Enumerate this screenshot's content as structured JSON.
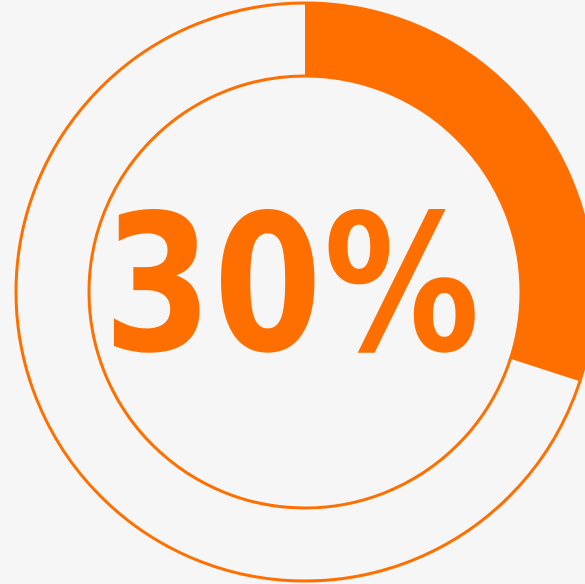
{
  "progress": {
    "value": 30,
    "percent_text": "30%",
    "color": "#ff6f00",
    "track_color": "#ff6f00",
    "background_color": "#f6f6f6"
  }
}
